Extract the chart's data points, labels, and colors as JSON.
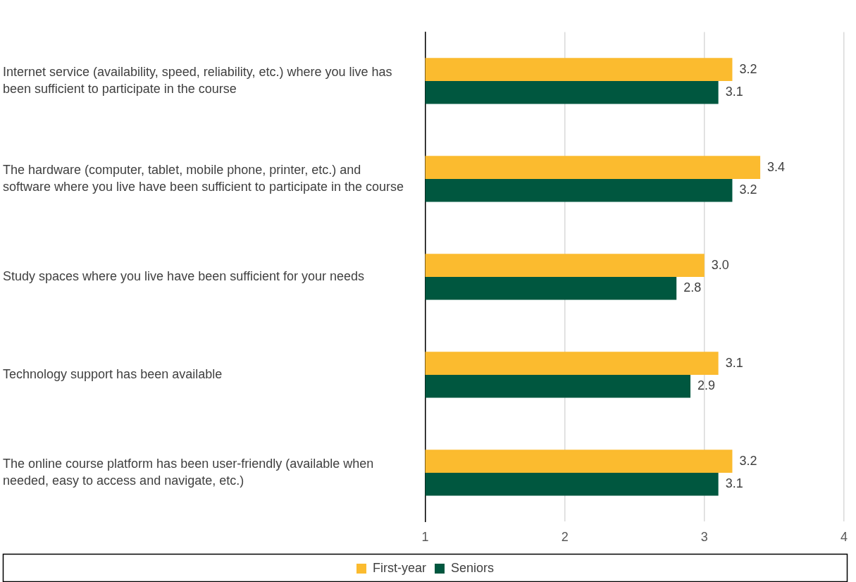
{
  "chart_data": {
    "type": "bar",
    "orientation": "horizontal",
    "categories": [
      "Internet service (availability, speed, reliability, etc.) where you live has been sufficient to participate in the course",
      "The hardware (computer, tablet, mobile phone, printer, etc.) and software where you live have been sufficient to participate in the course",
      "Study spaces where you live have been sufficient for your needs",
      "Technology support has been available",
      "The online course platform has been user-friendly (available when needed, easy to access and navigate, etc.)"
    ],
    "series": [
      {
        "name": "First-year",
        "color": "#fbbb2f",
        "values": [
          3.2,
          3.4,
          3.0,
          3.1,
          3.2
        ],
        "value_labels": [
          "3.2",
          "3.4",
          "3.0",
          "3.1",
          "3.2"
        ]
      },
      {
        "name": "Seniors",
        "color": "#00573f",
        "values": [
          3.1,
          3.2,
          2.8,
          2.9,
          3.1
        ],
        "value_labels": [
          "3.1",
          "3.2",
          "2.8",
          "2.9",
          "3.1"
        ]
      }
    ],
    "xlim": [
      1,
      4
    ],
    "xticks": [
      1,
      2,
      3,
      4
    ],
    "grid": "x",
    "legend": "bottom"
  }
}
